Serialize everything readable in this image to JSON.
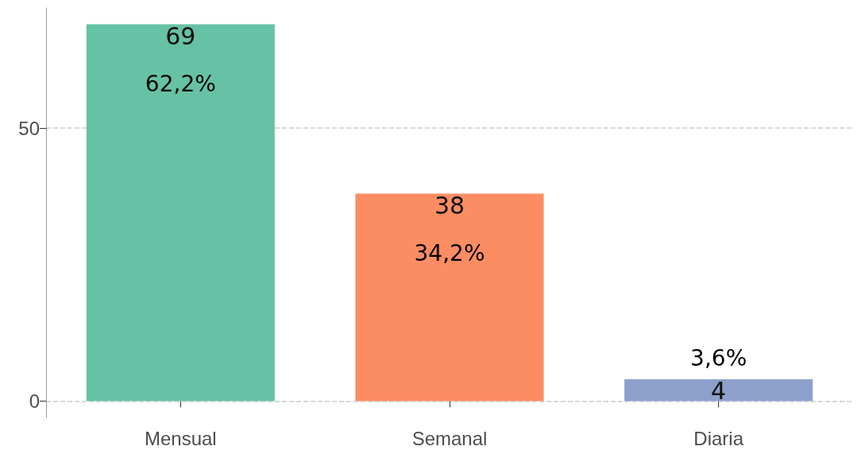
{
  "chart_data": {
    "type": "bar",
    "categories": [
      "Mensual",
      "Semanal",
      "Diaria"
    ],
    "values": [
      69,
      38,
      4
    ],
    "colors": [
      "#66c2a5",
      "#fc8d62",
      "#8da0cb"
    ],
    "ylim": [
      -3,
      72
    ],
    "yticks": [
      0,
      50
    ],
    "grid": "y",
    "data_labels": true,
    "annotations": [
      "62,2%",
      "34,2%",
      "3,6%"
    ]
  }
}
